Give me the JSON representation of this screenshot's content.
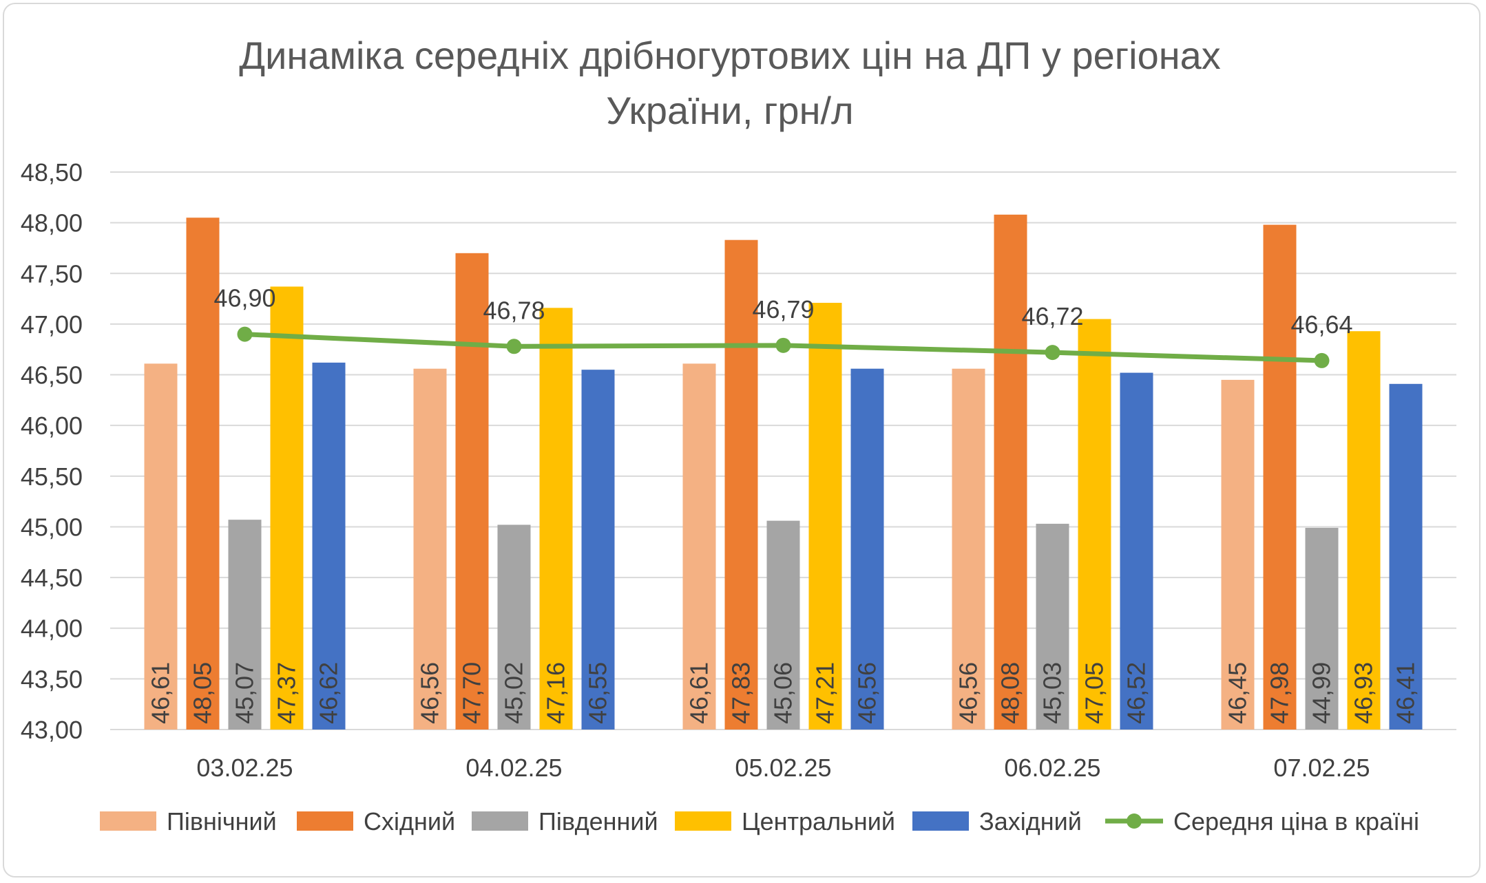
{
  "chart_data": {
    "type": "bar",
    "title_line1": "Динаміка середніх дрібногуртових цін на ДП у регіонах",
    "title_line2": "України, грн/л",
    "categories": [
      "03.02.25",
      "04.02.25",
      "05.02.25",
      "06.02.25",
      "07.02.25"
    ],
    "ylim": [
      43.0,
      48.5
    ],
    "yticks": [
      "43,00",
      "43,50",
      "44,00",
      "44,50",
      "45,00",
      "45,50",
      "46,00",
      "46,50",
      "47,00",
      "47,50",
      "48,00",
      "48,50"
    ],
    "ytick_values": [
      43.0,
      43.5,
      44.0,
      44.5,
      45.0,
      45.5,
      46.0,
      46.5,
      47.0,
      47.5,
      48.0,
      48.5
    ],
    "grid": true,
    "legend_position": "bottom",
    "series": [
      {
        "name": "Північний",
        "color": "#f4b183",
        "values": [
          46.61,
          46.56,
          46.61,
          46.56,
          46.45
        ],
        "labels": [
          "46,61",
          "46,56",
          "46,61",
          "46,56",
          "46,45"
        ]
      },
      {
        "name": "Східний",
        "color": "#ed7d31",
        "values": [
          48.05,
          47.7,
          47.83,
          48.08,
          47.98
        ],
        "labels": [
          "48,05",
          "47,70",
          "47,83",
          "48,08",
          "47,98"
        ]
      },
      {
        "name": "Південний",
        "color": "#a5a5a5",
        "values": [
          45.07,
          45.02,
          45.06,
          45.03,
          44.99
        ],
        "labels": [
          "45,07",
          "45,02",
          "45,06",
          "45,03",
          "44,99"
        ]
      },
      {
        "name": "Центральний",
        "color": "#ffc000",
        "values": [
          47.37,
          47.16,
          47.21,
          47.05,
          46.93
        ],
        "labels": [
          "47,37",
          "47,16",
          "47,21",
          "47,05",
          "46,93"
        ]
      },
      {
        "name": "Західний",
        "color": "#4472c4",
        "values": [
          46.62,
          46.55,
          46.56,
          46.52,
          46.41
        ],
        "labels": [
          "46,62",
          "46,55",
          "46,56",
          "46,52",
          "46,41"
        ]
      }
    ],
    "line_series": {
      "name": "Середня ціна в країні",
      "color": "#70ad47",
      "values": [
        46.9,
        46.78,
        46.79,
        46.72,
        46.64
      ],
      "labels": [
        "46,90",
        "46,78",
        "46,79",
        "46,72",
        "46,64"
      ]
    }
  }
}
